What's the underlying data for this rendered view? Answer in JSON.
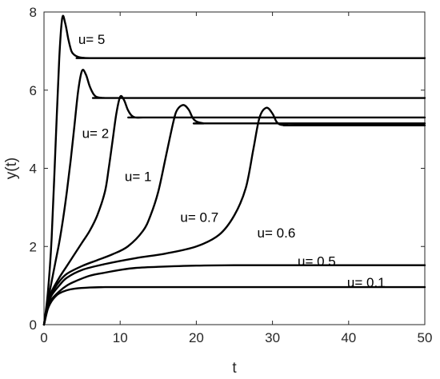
{
  "chart_data": {
    "type": "line",
    "title": "",
    "xlabel": "t",
    "ylabel": "y(t)",
    "xlim": [
      0,
      50
    ],
    "ylim": [
      0,
      8
    ],
    "xticks": [
      0,
      10,
      20,
      30,
      40,
      50
    ],
    "yticks": [
      0,
      2,
      4,
      6,
      8
    ],
    "grid": false,
    "legend": "none",
    "colors": {
      "line": "#000000",
      "axis": "#262626"
    },
    "series": [
      {
        "name": "u= 5",
        "label_at": [
          4.5,
          7.3
        ],
        "x": [
          0,
          0.5,
          1.0,
          1.5,
          2.0,
          2.4,
          2.8,
          3.2,
          3.6,
          4.0,
          4.5,
          5,
          6,
          8,
          50
        ],
        "y": [
          0,
          0.8,
          2.2,
          4.5,
          6.8,
          7.85,
          7.7,
          7.3,
          7.0,
          6.9,
          6.85,
          6.83,
          6.82,
          6.82,
          6.82
        ]
      },
      {
        "name": "u= 2",
        "label_at": [
          5.0,
          4.9
        ],
        "x": [
          0,
          0.5,
          1,
          1.5,
          2,
          2.5,
          3,
          3.5,
          4,
          4.5,
          5.0,
          5.5,
          6,
          6.5,
          7,
          8,
          10,
          50
        ],
        "y": [
          0,
          0.6,
          1.1,
          1.6,
          2.1,
          2.7,
          3.4,
          4.2,
          5.1,
          6.0,
          6.5,
          6.4,
          6.1,
          5.9,
          5.82,
          5.8,
          5.8,
          5.8
        ]
      },
      {
        "name": "u= 1",
        "label_at": [
          10.6,
          3.8
        ],
        "x": [
          0,
          0.5,
          1,
          2,
          3,
          4,
          5,
          6,
          7,
          8,
          8.5,
          9,
          9.5,
          10.0,
          10.5,
          11,
          11.5,
          12,
          13,
          14,
          50
        ],
        "y": [
          0,
          0.55,
          0.85,
          1.2,
          1.5,
          1.8,
          2.1,
          2.4,
          2.8,
          3.4,
          4.0,
          4.7,
          5.4,
          5.83,
          5.75,
          5.5,
          5.35,
          5.3,
          5.3,
          5.3,
          5.3
        ]
      },
      {
        "name": "u= 0.7",
        "label_at": [
          17.9,
          2.75
        ],
        "x": [
          0,
          0.5,
          1,
          2,
          3,
          5,
          7,
          9,
          11,
          13,
          14,
          15,
          16,
          17,
          17.5,
          18.3,
          19,
          19.5,
          20,
          21,
          22,
          50
        ],
        "y": [
          0,
          0.5,
          0.8,
          1.1,
          1.3,
          1.5,
          1.65,
          1.8,
          2.0,
          2.4,
          2.8,
          3.4,
          4.3,
          5.2,
          5.5,
          5.62,
          5.5,
          5.3,
          5.2,
          5.15,
          5.15,
          5.15
        ]
      },
      {
        "name": "u= 0.6",
        "label_at": [
          28.0,
          2.35
        ],
        "x": [
          0,
          0.5,
          1,
          2,
          3,
          5,
          8,
          12,
          16,
          20,
          23,
          25,
          26.5,
          27.5,
          28.3,
          29.2,
          30,
          30.5,
          31,
          32,
          33,
          50
        ],
        "y": [
          0,
          0.5,
          0.75,
          1.0,
          1.2,
          1.4,
          1.55,
          1.7,
          1.82,
          2.0,
          2.3,
          2.8,
          3.5,
          4.5,
          5.3,
          5.55,
          5.4,
          5.2,
          5.12,
          5.1,
          5.1,
          5.1
        ]
      },
      {
        "name": "u= 0.5",
        "label_at": [
          33.3,
          1.63
        ],
        "x": [
          0,
          0.5,
          1,
          2,
          3,
          4,
          6,
          8,
          10,
          12,
          15,
          20,
          25,
          30,
          50
        ],
        "y": [
          0,
          0.45,
          0.65,
          0.85,
          1.0,
          1.1,
          1.25,
          1.33,
          1.4,
          1.45,
          1.48,
          1.51,
          1.52,
          1.52,
          1.52
        ]
      },
      {
        "name": "u= 0.1",
        "label_at": [
          39.8,
          1.08
        ],
        "x": [
          0,
          0.5,
          1,
          1.5,
          2,
          3,
          4,
          6,
          8,
          10,
          15,
          50
        ],
        "y": [
          0,
          0.4,
          0.6,
          0.72,
          0.8,
          0.88,
          0.92,
          0.95,
          0.96,
          0.96,
          0.96,
          0.96
        ]
      }
    ]
  }
}
